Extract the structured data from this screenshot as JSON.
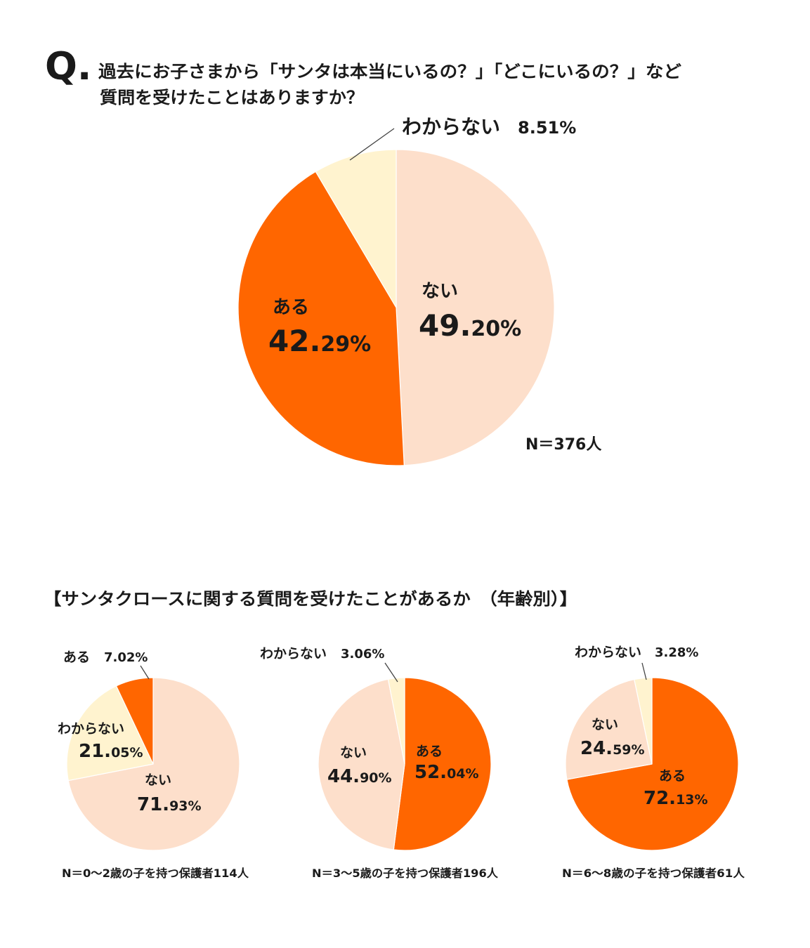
{
  "question": {
    "mark": "Q.",
    "line1": "過去にお子さまから「サンタは本当にいるの？」「どこにいるの？」など",
    "line2": "質問を受けたことはありますか？"
  },
  "section_title": "【サンタクロースに関する質問を受けたことがあるか　（年齢別）】",
  "text_color": "#1A1A1A",
  "chart_data": [
    {
      "type": "pie",
      "n_label": "N＝376人",
      "slices": [
        {
          "label": "ない",
          "value": 49.2,
          "color": "#FDDFCB"
        },
        {
          "label": "ある",
          "value": 42.29,
          "color": "#FF6600"
        },
        {
          "label": "わからない",
          "value": 8.51,
          "color": "#FFF3CF"
        }
      ]
    },
    {
      "type": "pie",
      "n_label": "N＝0〜2歳の子を持つ保護者114人",
      "slices": [
        {
          "label": "ない",
          "value": 71.93,
          "color": "#FDDFCB"
        },
        {
          "label": "わからない",
          "value": 21.05,
          "color": "#FFF3CF"
        },
        {
          "label": "ある",
          "value": 7.02,
          "color": "#FF6600"
        }
      ]
    },
    {
      "type": "pie",
      "n_label": "N＝3〜5歳の子を持つ保護者196人",
      "slices": [
        {
          "label": "ある",
          "value": 52.04,
          "color": "#FF6600"
        },
        {
          "label": "ない",
          "value": 44.9,
          "color": "#FDDFCB"
        },
        {
          "label": "わからない",
          "value": 3.06,
          "color": "#FFF3CF"
        }
      ]
    },
    {
      "type": "pie",
      "n_label": "N＝6〜8歳の子を持つ保護者61人",
      "slices": [
        {
          "label": "ある",
          "value": 72.13,
          "color": "#FF6600"
        },
        {
          "label": "ない",
          "value": 24.59,
          "color": "#FDDFCB"
        },
        {
          "label": "わからない",
          "value": 3.28,
          "color": "#FFF3CF"
        }
      ]
    }
  ]
}
